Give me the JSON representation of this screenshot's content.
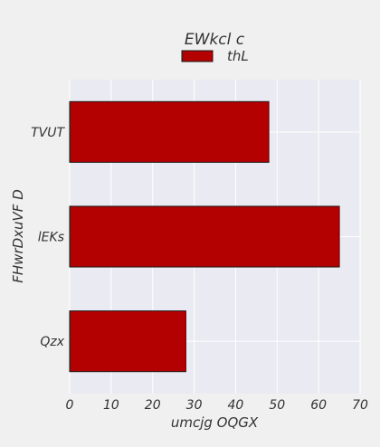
{
  "chart_data": {
    "type": "bar",
    "orientation": "horizontal",
    "title": "EWkcl c",
    "xlabel": "umcjg  OQGX",
    "ylabel": "FHwrDxuVF  D",
    "categories": [
      "TVUT",
      "lEKs",
      "Qzx"
    ],
    "series": [
      {
        "name": "thL",
        "values": [
          48,
          65,
          28
        ]
      }
    ],
    "xlim": [
      0,
      70
    ],
    "xticks": [
      0,
      10,
      20,
      30,
      40,
      50,
      60,
      70
    ],
    "grid": true,
    "legend_position": "top-center",
    "colors": {
      "bar": "#b30000",
      "bar_edge": "#1a1a1a",
      "plot_background": "#eaeaf2",
      "page_background": "#f0f0f0",
      "grid": "#ffffff",
      "text": "#333333"
    }
  }
}
